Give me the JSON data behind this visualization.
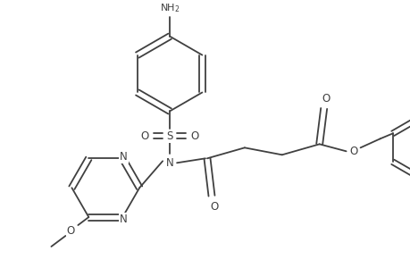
{
  "bg_color": "#ffffff",
  "line_color": "#404040",
  "figsize": [
    4.6,
    3.0
  ],
  "dpi": 100,
  "lw": 1.3,
  "fs": 7.5,
  "xlim": [
    0,
    460
  ],
  "ylim": [
    0,
    300
  ]
}
